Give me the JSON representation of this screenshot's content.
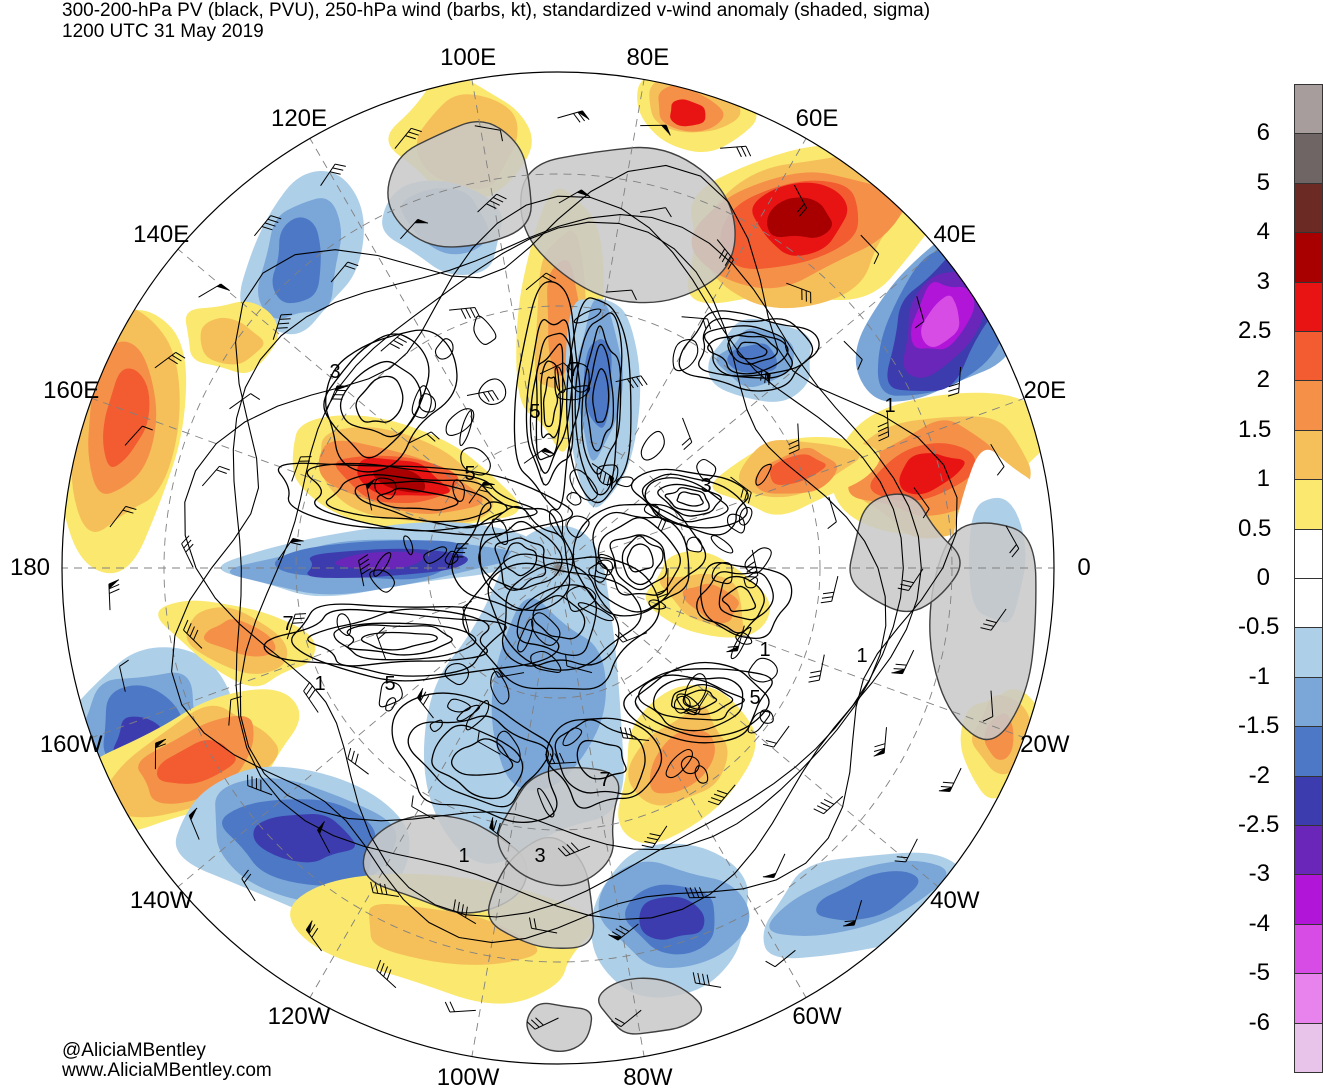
{
  "title": {
    "line1": "300-200-hPa PV (black, PVU), 250-hPa wind (barbs, kt), standardized v-wind anomaly (shaded, sigma)",
    "line2": "1200 UTC 31 May 2019"
  },
  "credit": {
    "handle": "@AliciaMBentley",
    "url": "www.AliciaMBentley.com"
  },
  "longitude_labels": [
    {
      "text": "100E",
      "deg": 100
    },
    {
      "text": "80E",
      "deg": 80
    },
    {
      "text": "60E",
      "deg": 60
    },
    {
      "text": "120E",
      "deg": 120
    },
    {
      "text": "40E",
      "deg": 40
    },
    {
      "text": "140E",
      "deg": 140
    },
    {
      "text": "20E",
      "deg": 20
    },
    {
      "text": "160E",
      "deg": 160
    },
    {
      "text": "180",
      "deg": 180
    },
    {
      "text": "0",
      "deg": 0
    },
    {
      "text": "160W",
      "deg": -160
    },
    {
      "text": "20W",
      "deg": -20
    },
    {
      "text": "140W",
      "deg": -140
    },
    {
      "text": "40W",
      "deg": -40
    },
    {
      "text": "120W",
      "deg": -120
    },
    {
      "text": "60W",
      "deg": -60
    },
    {
      "text": "100W",
      "deg": -100
    },
    {
      "text": "80W",
      "deg": -80
    }
  ],
  "pv_contour_labels": [
    "3",
    "5",
    "7",
    "5",
    "1",
    "3",
    "1",
    "1",
    "5",
    "7",
    "1",
    "5",
    "7",
    "3",
    "1"
  ],
  "colorbar": {
    "levels": [
      {
        "label": "6",
        "color": "#a89d9d"
      },
      {
        "label": "5",
        "color": "#706565"
      },
      {
        "label": "4",
        "color": "#6b2a24"
      },
      {
        "label": "3",
        "color": "#a80000"
      },
      {
        "label": "2.5",
        "color": "#e81414"
      },
      {
        "label": "2",
        "color": "#f25c30"
      },
      {
        "label": "1.5",
        "color": "#f59048"
      },
      {
        "label": "1",
        "color": "#f5c05a"
      },
      {
        "label": "0.5",
        "color": "#fbe86e"
      },
      {
        "label": "0",
        "color": "#ffffff"
      },
      {
        "label": "-0.5",
        "color": "#ffffff"
      },
      {
        "label": "-1",
        "color": "#aecfe8"
      },
      {
        "label": "-1.5",
        "color": "#7aa6d8"
      },
      {
        "label": "-2",
        "color": "#4c78c6"
      },
      {
        "label": "-2.5",
        "color": "#3c3cae"
      },
      {
        "label": "-3",
        "color": "#6a26b8"
      },
      {
        "label": "-4",
        "color": "#b015d8"
      },
      {
        "label": "-5",
        "color": "#d84ce6"
      },
      {
        "label": "-6",
        "color": "#e882ec"
      },
      {
        "label": "",
        "color": "#e8c4ea"
      }
    ]
  },
  "colors": {
    "land": "#c8c8c8",
    "coast": "#404040",
    "pv_contour": "#000000",
    "graticule": "#808080"
  }
}
